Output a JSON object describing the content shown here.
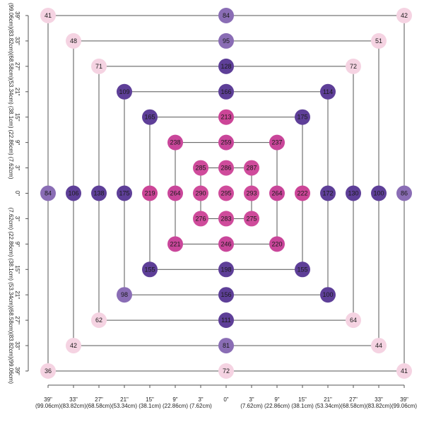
{
  "chart_data": {
    "type": "scatter",
    "x": [
      -39,
      0,
      39,
      -39,
      39,
      -39,
      0,
      39,
      -33,
      0,
      33,
      -33,
      33,
      -33,
      0,
      33,
      -27,
      0,
      27,
      -27,
      27,
      -27,
      0,
      27,
      -21,
      0,
      21,
      -21,
      21,
      -21,
      0,
      21,
      -15,
      0,
      15,
      -15,
      15,
      -15,
      0,
      15,
      -9,
      0,
      9,
      -9,
      9,
      -9,
      0,
      9,
      -3,
      0,
      3,
      -3,
      0,
      3,
      -3,
      0,
      3
    ],
    "y": [
      39,
      39,
      39,
      0,
      0,
      -39,
      -39,
      -39,
      33,
      33,
      33,
      0,
      0,
      -33,
      -33,
      -33,
      27,
      27,
      27,
      0,
      0,
      -27,
      -27,
      -27,
      21,
      21,
      21,
      0,
      0,
      -21,
      -21,
      -21,
      15,
      15,
      15,
      0,
      0,
      -15,
      -15,
      -15,
      9,
      9,
      9,
      0,
      0,
      -9,
      -9,
      -9,
      3,
      3,
      3,
      0,
      0,
      0,
      -3,
      -3,
      -3
    ],
    "values": [
      41,
      84,
      42,
      84,
      86,
      36,
      72,
      41,
      48,
      95,
      51,
      106,
      100,
      42,
      81,
      44,
      71,
      128,
      72,
      138,
      130,
      62,
      111,
      64,
      109,
      166,
      114,
      175,
      172,
      98,
      156,
      100,
      165,
      213,
      175,
      219,
      222,
      155,
      198,
      155,
      238,
      259,
      237,
      264,
      264,
      221,
      246,
      220,
      285,
      286,
      287,
      290,
      295,
      293,
      276,
      283,
      275
    ],
    "colors": [
      "#f5d3e2",
      "#8a6db5",
      "#f5d3e2",
      "#8a6db5",
      "#8a6db5",
      "#f5d3e2",
      "#f5d3e2",
      "#f5d3e2",
      "#f5d3e2",
      "#8a6db5",
      "#f5d3e2",
      "#5e3f98",
      "#5e3f98",
      "#f5d3e2",
      "#8a6db5",
      "#f5d3e2",
      "#f5d3e2",
      "#5e3f98",
      "#f5d3e2",
      "#5e3f98",
      "#5e3f98",
      "#f5d3e2",
      "#5e3f98",
      "#f5d3e2",
      "#5e3f98",
      "#5e3f98",
      "#5e3f98",
      "#5e3f98",
      "#5e3f98",
      "#8a6db5",
      "#5e3f98",
      "#5e3f98",
      "#5e3f98",
      "#cc4597",
      "#5e3f98",
      "#cc4597",
      "#cc4597",
      "#5e3f98",
      "#5e3f98",
      "#5e3f98",
      "#c9469a",
      "#c9469a",
      "#c9469a",
      "#c9469a",
      "#c9469a",
      "#c9469a",
      "#c9469a",
      "#c9469a",
      "#cf4b9b",
      "#cf4b9b",
      "#cf4b9b",
      "#cf4b9b",
      "#cf4b9b",
      "#cf4b9b",
      "#cf4b9b",
      "#cf4b9b",
      "#cf4b9b"
    ],
    "xlim": [
      -39,
      39
    ],
    "ylim": [
      -39,
      39
    ],
    "xticks": [
      {
        "value": -39,
        "label": "39\"\n(99.06cm)"
      },
      {
        "value": -33,
        "label": "33\"\n(83.82cm)"
      },
      {
        "value": -27,
        "label": "27\"\n(68.58cm)"
      },
      {
        "value": -21,
        "label": "21\"\n(53.34cm)"
      },
      {
        "value": -15,
        "label": "15\"\n(38.1cm)"
      },
      {
        "value": -9,
        "label": "9\"\n(22.86cm)"
      },
      {
        "value": -3,
        "label": "3\"\n(7.62cm)"
      },
      {
        "value": 0,
        "label": "0\""
      },
      {
        "value": 3,
        "label": "3\"\n(7.62cm)"
      },
      {
        "value": 9,
        "label": "9\"\n(22.86cm)"
      },
      {
        "value": 15,
        "label": "15\"\n(38.1cm)"
      },
      {
        "value": 21,
        "label": "21\"\n(53.34cm)"
      },
      {
        "value": 27,
        "label": "27\"\n(68.58cm)"
      },
      {
        "value": 33,
        "label": "33\"\n(83.82cm)"
      },
      {
        "value": 39,
        "label": "39\"\n(99.06cm)"
      }
    ],
    "yticks": [
      {
        "value": -39,
        "label": "39\"\n(99.06cm)"
      },
      {
        "value": -33,
        "label": "33\"\n(83.82cm)"
      },
      {
        "value": -27,
        "label": "27\"\n(68.58cm)"
      },
      {
        "value": -21,
        "label": "21\"\n(53.34cm)"
      },
      {
        "value": -15,
        "label": "15\"\n(38.1cm)"
      },
      {
        "value": -9,
        "label": "9\"\n(22.86cm)"
      },
      {
        "value": -3,
        "label": "3\"\n(7.62cm)"
      },
      {
        "value": 0,
        "label": "0\""
      },
      {
        "value": 3,
        "label": "3\"\n(7.62cm)"
      },
      {
        "value": 9,
        "label": "9\"\n(22.86cm)"
      },
      {
        "value": 15,
        "label": "15\"\n(38.1cm)"
      },
      {
        "value": 21,
        "label": "21\"\n(53.34cm)"
      },
      {
        "value": 27,
        "label": "27\"\n(68.58cm)"
      },
      {
        "value": 33,
        "label": "33\"\n(83.82cm)"
      },
      {
        "value": 39,
        "label": "39\"\n(99.06cm)"
      }
    ]
  }
}
